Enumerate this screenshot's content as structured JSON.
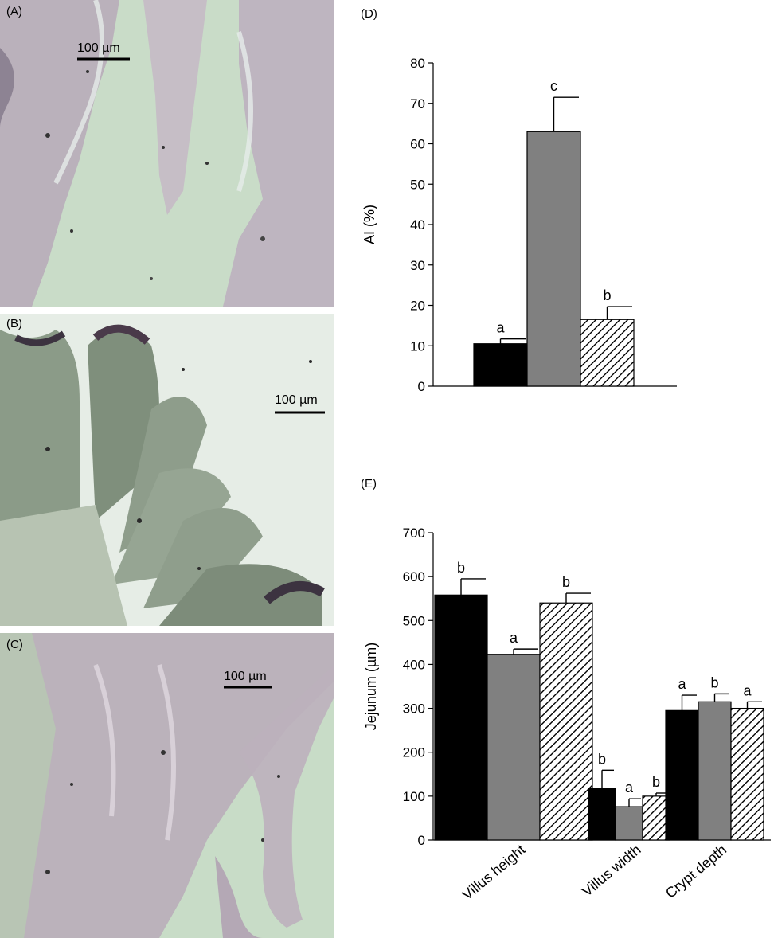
{
  "panels": {
    "A": {
      "label": "(A)",
      "scale_bar": "100 µm"
    },
    "B": {
      "label": "(B)",
      "scale_bar": "100 µm"
    },
    "C": {
      "label": "(C)",
      "scale_bar": "100 µm"
    }
  },
  "colors": {
    "group1": "#000000",
    "group2": "#808080",
    "group3_fill": "#ffffff",
    "group3_hatch": "#000000"
  },
  "chart_data": [
    {
      "panel_label": "(D)",
      "type": "bar",
      "title": "",
      "xlabel": "",
      "ylabel": "AI (%)",
      "ylim": [
        0,
        80
      ],
      "yticks": [
        0,
        10,
        20,
        30,
        40,
        50,
        60,
        70,
        80
      ],
      "categories": [
        ""
      ],
      "series": [
        {
          "values": [
            10.5
          ],
          "errors": [
            1.2
          ],
          "letters": [
            "a"
          ],
          "style": "solid-black"
        },
        {
          "values": [
            63
          ],
          "errors": [
            8.5
          ],
          "letters": [
            "c"
          ],
          "style": "solid-grey"
        },
        {
          "values": [
            16.5
          ],
          "errors": [
            3.2
          ],
          "letters": [
            "b"
          ],
          "style": "hatched"
        }
      ]
    },
    {
      "panel_label": "(E)",
      "type": "bar",
      "title": "",
      "xlabel": "",
      "ylabel": "Jejunum (µm)",
      "ylim": [
        0,
        700
      ],
      "yticks": [
        0,
        100,
        200,
        300,
        400,
        500,
        600,
        700
      ],
      "categories": [
        "Villus height",
        "Villus width",
        "Crypt depth"
      ],
      "series": [
        {
          "values": [
            558,
            117,
            295
          ],
          "errors": [
            37,
            42,
            35
          ],
          "letters": [
            "b",
            "b",
            "a"
          ],
          "style": "solid-black"
        },
        {
          "values": [
            423,
            76,
            315
          ],
          "errors": [
            12,
            18,
            18
          ],
          "letters": [
            "a",
            "a",
            "b"
          ],
          "style": "solid-grey"
        },
        {
          "values": [
            540,
            100,
            300
          ],
          "errors": [
            22,
            7,
            15
          ],
          "letters": [
            "b",
            "b",
            "a"
          ],
          "style": "hatched"
        }
      ]
    }
  ]
}
